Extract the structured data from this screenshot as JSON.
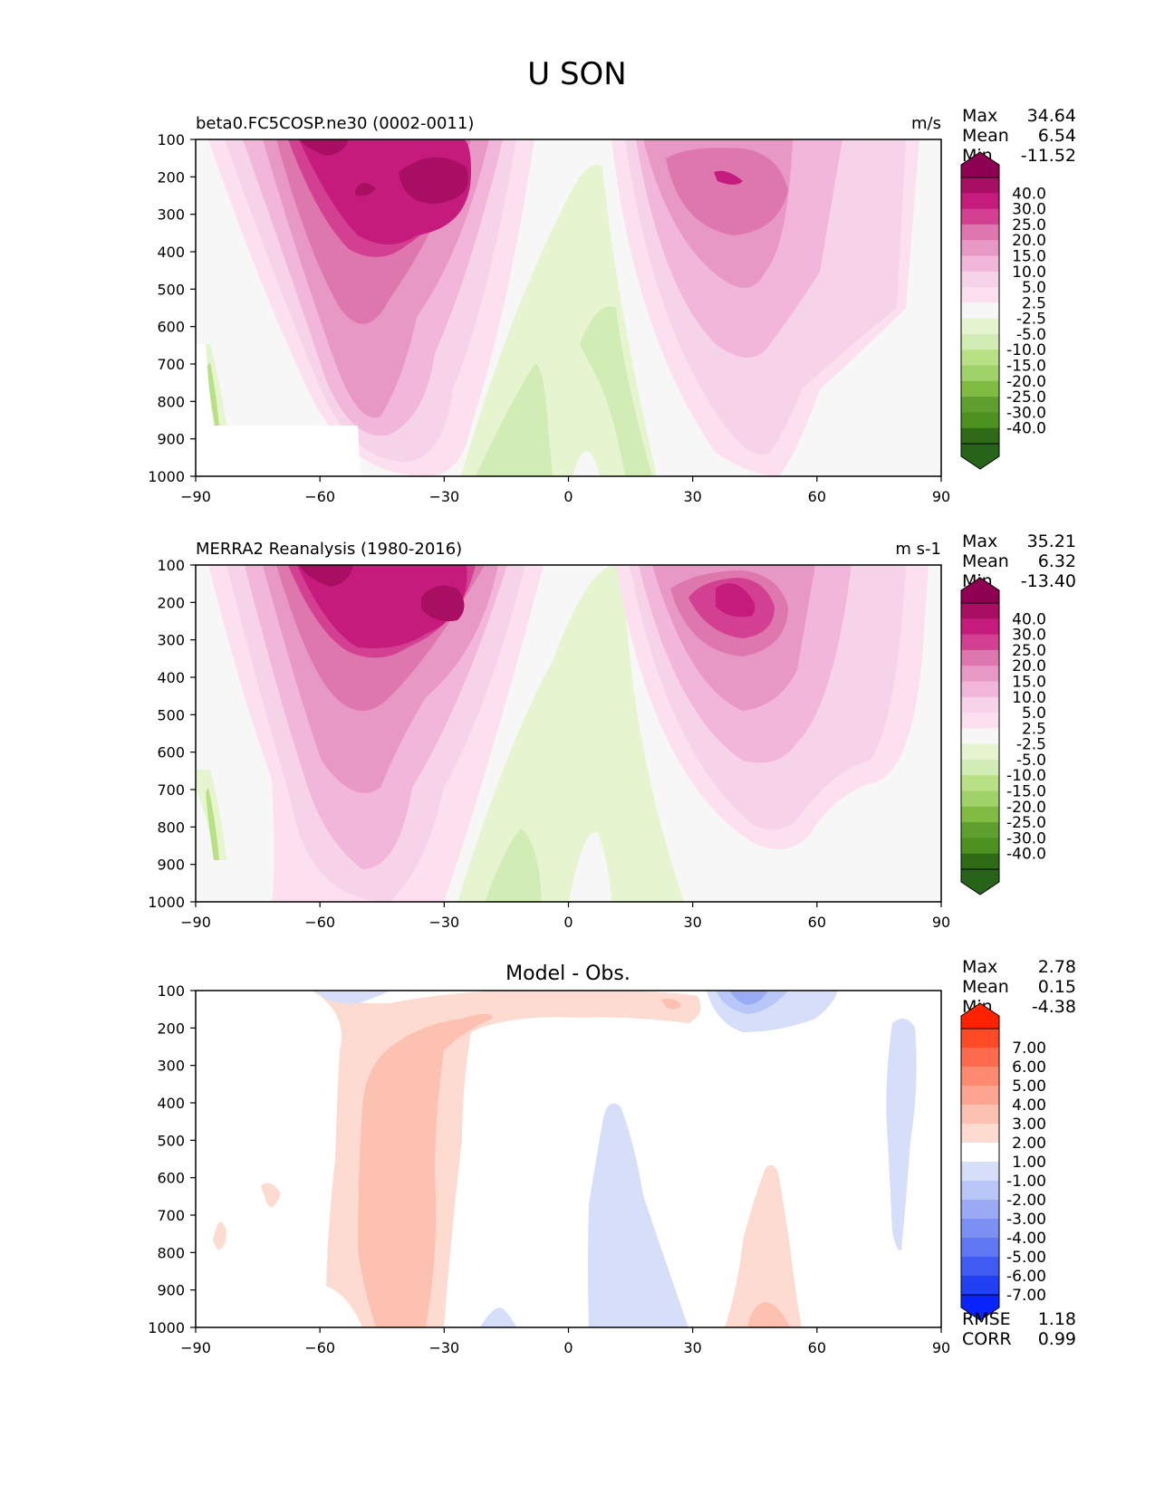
{
  "title": "U SON",
  "chart_data": [
    {
      "type": "contour",
      "title_left": "beta0.FC5COSP.ne30 (0002-0011)",
      "title_right": "m/s",
      "stats": [
        {
          "label": "Max",
          "value": "34.64"
        },
        {
          "label": "Mean",
          "value": "6.54"
        },
        {
          "label": "Min",
          "value": "-11.52"
        }
      ],
      "xlim": [
        -90,
        90
      ],
      "ylim": [
        1000,
        100
      ],
      "xticks": [
        "−90",
        "−60",
        "−30",
        "0",
        "30",
        "60",
        "90"
      ],
      "yticks": [
        "100",
        "200",
        "300",
        "400",
        "500",
        "600",
        "700",
        "800",
        "900",
        "1000"
      ],
      "colorbar": {
        "labels": [
          "40.0",
          "30.0",
          "25.0",
          "20.0",
          "15.0",
          "10.0",
          "5.0",
          "2.5",
          "-2.5",
          "-5.0",
          "-10.0",
          "-15.0",
          "-20.0",
          "-25.0",
          "-30.0",
          "-40.0"
        ],
        "colors": [
          "#8e0152",
          "#a80f63",
          "#c51b7d",
          "#d33f91",
          "#de77ae",
          "#e898c5",
          "#f1b6da",
          "#f7d3e9",
          "#fde0ef",
          "#f7f7f7",
          "#e6f5d0",
          "#d2ecb5",
          "#b8e186",
          "#a0d26a",
          "#7fbc41",
          "#5f9f30",
          "#4d9221",
          "#2f6b17",
          "#276419"
        ]
      },
      "features": [
        {
          "kind": "jet",
          "lat": -45,
          "lev": 220,
          "value": 34.6
        },
        {
          "kind": "jet",
          "lat": 42,
          "lev": 230,
          "value": 25
        }
      ]
    },
    {
      "type": "contour",
      "title_left": "MERRA2 Reanalysis (1980-2016)",
      "title_right": "m s-1",
      "stats": [
        {
          "label": "Max",
          "value": "35.21"
        },
        {
          "label": "Mean",
          "value": "6.32"
        },
        {
          "label": "Min",
          "value": "-13.40"
        }
      ],
      "xlim": [
        -90,
        90
      ],
      "ylim": [
        1000,
        100
      ],
      "xticks": [
        "−90",
        "−60",
        "−30",
        "0",
        "30",
        "60",
        "90"
      ],
      "yticks": [
        "100",
        "200",
        "300",
        "400",
        "500",
        "600",
        "700",
        "800",
        "900",
        "1000"
      ],
      "colorbar": {
        "labels": [
          "40.0",
          "30.0",
          "25.0",
          "20.0",
          "15.0",
          "10.0",
          "5.0",
          "2.5",
          "-2.5",
          "-5.0",
          "-10.0",
          "-15.0",
          "-20.0",
          "-25.0",
          "-30.0",
          "-40.0"
        ],
        "colors": [
          "#8e0152",
          "#a80f63",
          "#c51b7d",
          "#d33f91",
          "#de77ae",
          "#e898c5",
          "#f1b6da",
          "#f7d3e9",
          "#fde0ef",
          "#f7f7f7",
          "#e6f5d0",
          "#d2ecb5",
          "#b8e186",
          "#a0d26a",
          "#7fbc41",
          "#5f9f30",
          "#4d9221",
          "#2f6b17",
          "#276419"
        ]
      },
      "features": [
        {
          "kind": "jet",
          "lat": -45,
          "lev": 200,
          "value": 35.2
        },
        {
          "kind": "jet",
          "lat": 42,
          "lev": 220,
          "value": 27
        }
      ]
    },
    {
      "type": "contour",
      "title_center": "Model - Obs.",
      "stats": [
        {
          "label": "Max",
          "value": "2.78"
        },
        {
          "label": "Mean",
          "value": "0.15"
        },
        {
          "label": "Min",
          "value": "-4.38"
        }
      ],
      "extra_stats": [
        {
          "label": "RMSE",
          "value": "1.18"
        },
        {
          "label": "CORR",
          "value": "0.99"
        }
      ],
      "xlim": [
        -90,
        90
      ],
      "ylim": [
        1000,
        100
      ],
      "xticks": [
        "−90",
        "−60",
        "−30",
        "0",
        "30",
        "60",
        "90"
      ],
      "yticks": [
        "100",
        "200",
        "300",
        "400",
        "500",
        "600",
        "700",
        "800",
        "900",
        "1000"
      ],
      "colorbar": {
        "labels": [
          "7.00",
          "6.00",
          "5.00",
          "4.00",
          "3.00",
          "2.00",
          "1.00",
          "-1.00",
          "-2.00",
          "-3.00",
          "-4.00",
          "-5.00",
          "-6.00",
          "-7.00"
        ],
        "colors": [
          "#ff2200",
          "#ff4a26",
          "#ff6b4e",
          "#ff8a70",
          "#fea592",
          "#fdc1b2",
          "#fedbd0",
          "#ffffff",
          "#d6defa",
          "#b9c6f8",
          "#9aaaf5",
          "#7c90f3",
          "#5f77f2",
          "#3f5bf2",
          "#2240f3",
          "#0a24ff"
        ]
      },
      "features": [
        {
          "kind": "positive",
          "lat": -45,
          "lev": 600,
          "value": 2.78
        },
        {
          "kind": "negative",
          "lat": 38,
          "lev": 110,
          "value": -4.38
        }
      ]
    }
  ]
}
